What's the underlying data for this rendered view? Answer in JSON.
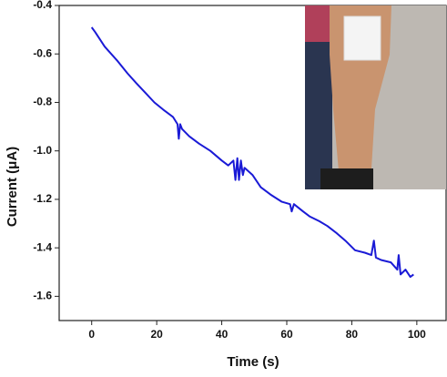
{
  "chart_data": {
    "type": "line",
    "x_label": "Time (s)",
    "y_label": "Current (μA)",
    "xlim": [
      -10,
      109
    ],
    "xticks": [
      0,
      20,
      40,
      60,
      80,
      100
    ],
    "ylim": [
      -1.7,
      -0.4
    ],
    "yticks": [
      -0.4,
      -0.6,
      -0.8,
      {
        "value": -1,
        "label": "-1.0"
      },
      -1.2,
      -1.4,
      -1.6
    ],
    "series": [
      {
        "color": "#1a1ad6",
        "x": [
          0,
          1.1,
          4,
          8,
          11,
          13.7,
          16.5,
          19.3,
          22,
          25,
          26.4,
          26.8,
          27.2,
          27.8,
          30,
          33,
          36.5,
          40,
          42,
          43.6,
          44.2,
          44.8,
          45.3,
          45.9,
          46.5,
          47,
          49.5,
          52,
          55,
          58.5,
          61,
          61.5,
          62.2,
          65,
          67,
          70,
          72.5,
          75.4,
          78,
          81,
          84,
          86,
          86.8,
          87.4,
          89,
          92,
          94,
          94.4,
          95,
          96.5,
          98,
          99
        ],
        "values": [
          -0.49,
          -0.51,
          -0.57,
          -0.63,
          -0.68,
          -0.72,
          -0.76,
          -0.8,
          -0.83,
          -0.86,
          -0.89,
          -0.95,
          -0.89,
          -0.91,
          -0.94,
          -0.97,
          -1.0,
          -1.04,
          -1.06,
          -1.04,
          -1.12,
          -1.03,
          -1.12,
          -1.04,
          -1.1,
          -1.07,
          -1.1,
          -1.15,
          -1.18,
          -1.21,
          -1.22,
          -1.25,
          -1.22,
          -1.25,
          -1.27,
          -1.29,
          -1.31,
          -1.34,
          -1.37,
          -1.41,
          -1.42,
          -1.43,
          -1.37,
          -1.44,
          -1.45,
          -1.46,
          -1.49,
          -1.43,
          -1.51,
          -1.49,
          -1.52,
          -1.51
        ]
      }
    ]
  }
}
